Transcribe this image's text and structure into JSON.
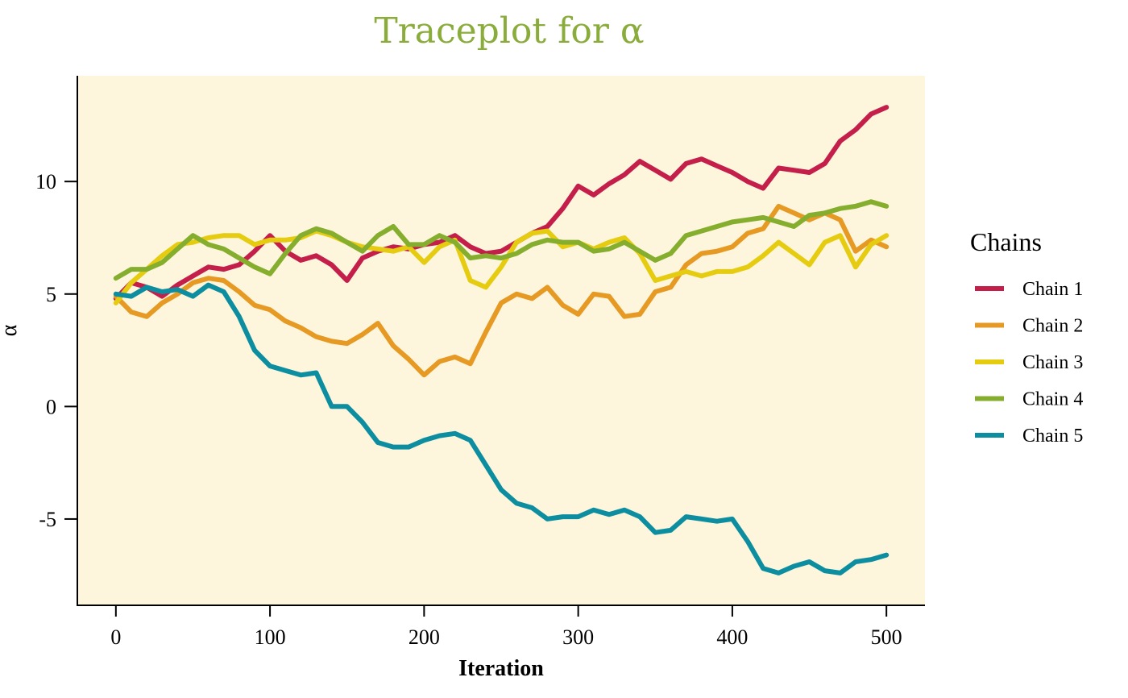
{
  "colors": {
    "title": "#8aac3a",
    "panel_background": "#fdf6dc",
    "axis": "#000000"
  },
  "chart_data": {
    "type": "line",
    "title": "Traceplot for  α",
    "xlabel": "Iteration",
    "ylabel": "α",
    "xlim": [
      -25,
      525
    ],
    "ylim": [
      -8.8,
      14.7
    ],
    "x_ticks": [
      0,
      100,
      200,
      300,
      400,
      500
    ],
    "y_ticks": [
      -5,
      0,
      5,
      10
    ],
    "grid": false,
    "legend": {
      "title": "Chains",
      "position": "right"
    },
    "x": [
      0,
      10,
      20,
      30,
      40,
      50,
      60,
      70,
      80,
      90,
      100,
      110,
      120,
      130,
      140,
      150,
      160,
      170,
      180,
      190,
      200,
      210,
      220,
      230,
      240,
      250,
      260,
      270,
      280,
      290,
      300,
      310,
      320,
      330,
      340,
      350,
      360,
      370,
      380,
      390,
      400,
      410,
      420,
      430,
      440,
      450,
      460,
      470,
      480,
      490,
      500
    ],
    "series": [
      {
        "name": "Chain 1",
        "color": "#c41e4a",
        "values": [
          4.8,
          5.5,
          5.3,
          4.9,
          5.4,
          5.8,
          6.2,
          6.1,
          6.3,
          6.9,
          7.6,
          6.9,
          6.5,
          6.7,
          6.3,
          5.6,
          6.6,
          6.9,
          7.1,
          7.0,
          7.2,
          7.3,
          7.6,
          7.1,
          6.8,
          6.9,
          7.3,
          7.7,
          8.0,
          8.8,
          9.8,
          9.4,
          9.9,
          10.3,
          10.9,
          10.5,
          10.1,
          10.8,
          11.0,
          10.7,
          10.4,
          10.0,
          9.7,
          10.6,
          10.5,
          10.4,
          10.8,
          11.8,
          12.3,
          13.0,
          13.3
        ]
      },
      {
        "name": "Chain 2",
        "color": "#e69a24",
        "values": [
          4.9,
          4.2,
          4.0,
          4.6,
          5.0,
          5.5,
          5.7,
          5.6,
          5.1,
          4.5,
          4.3,
          3.8,
          3.5,
          3.1,
          2.9,
          2.8,
          3.2,
          3.7,
          2.7,
          2.1,
          1.4,
          2.0,
          2.2,
          1.9,
          3.3,
          4.6,
          5.0,
          4.8,
          5.3,
          4.5,
          4.1,
          5.0,
          4.9,
          4.0,
          4.1,
          5.1,
          5.3,
          6.3,
          6.8,
          6.9,
          7.1,
          7.7,
          7.9,
          8.9,
          8.6,
          8.3,
          8.6,
          8.3,
          6.9,
          7.4,
          7.1
        ]
      },
      {
        "name": "Chain 3",
        "color": "#e6cc10",
        "values": [
          4.6,
          5.5,
          6.1,
          6.7,
          7.2,
          7.3,
          7.5,
          7.6,
          7.6,
          7.2,
          7.4,
          7.4,
          7.5,
          7.8,
          7.6,
          7.3,
          7.1,
          7.0,
          6.9,
          7.1,
          6.4,
          7.1,
          7.4,
          5.6,
          5.3,
          6.2,
          7.3,
          7.7,
          7.8,
          7.1,
          7.3,
          7.0,
          7.3,
          7.5,
          6.8,
          5.6,
          5.8,
          6.0,
          5.8,
          6.0,
          6.0,
          6.2,
          6.7,
          7.3,
          6.8,
          6.3,
          7.3,
          7.6,
          6.2,
          7.2,
          7.6
        ]
      },
      {
        "name": "Chain 4",
        "color": "#86ae2e",
        "values": [
          5.7,
          6.1,
          6.1,
          6.4,
          7.0,
          7.6,
          7.2,
          7.0,
          6.6,
          6.2,
          5.9,
          6.8,
          7.6,
          7.9,
          7.7,
          7.3,
          6.9,
          7.6,
          8.0,
          7.2,
          7.2,
          7.6,
          7.3,
          6.6,
          6.7,
          6.6,
          6.8,
          7.2,
          7.4,
          7.3,
          7.3,
          6.9,
          7.0,
          7.3,
          6.9,
          6.5,
          6.8,
          7.6,
          7.8,
          8.0,
          8.2,
          8.3,
          8.4,
          8.2,
          8.0,
          8.5,
          8.6,
          8.8,
          8.9,
          9.1,
          8.9
        ]
      },
      {
        "name": "Chain 5",
        "color": "#0d8ea0",
        "values": [
          5.0,
          4.9,
          5.3,
          5.1,
          5.2,
          4.9,
          5.4,
          5.1,
          4.0,
          2.5,
          1.8,
          1.6,
          1.4,
          1.5,
          0.0,
          0.0,
          -0.7,
          -1.6,
          -1.8,
          -1.8,
          -1.5,
          -1.3,
          -1.2,
          -1.5,
          -2.6,
          -3.7,
          -4.3,
          -4.5,
          -5.0,
          -4.9,
          -4.9,
          -4.6,
          -4.8,
          -4.6,
          -4.9,
          -5.6,
          -5.5,
          -4.9,
          -5.0,
          -5.1,
          -5.0,
          -6.0,
          -7.2,
          -7.4,
          -7.1,
          -6.9,
          -7.3,
          -7.4,
          -6.9,
          -6.8,
          -6.6
        ]
      }
    ]
  }
}
